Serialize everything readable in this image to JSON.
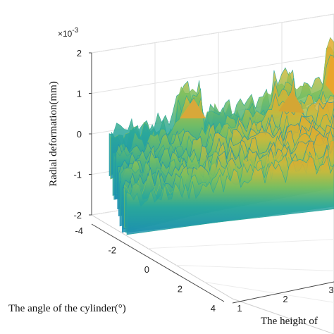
{
  "chart_data": {
    "type": "surface",
    "zlabel": "Radial deformation(mm)",
    "ylabel_angle": "The angle of the cylinder(°)",
    "xlabel_height": "The height of",
    "z_exponent_prefix": "×10",
    "z_exponent": "-3",
    "z_ticks": [
      "-2",
      "-1",
      "0",
      "1",
      "2"
    ],
    "angle_ticks": [
      "-4",
      "-2",
      "0",
      "2",
      "4"
    ],
    "height_ticks": [
      "1",
      "2",
      "3"
    ],
    "zlim": [
      -2,
      2
    ],
    "angle_range": [
      -4,
      4
    ],
    "height_range": [
      1,
      3
    ],
    "grid": true,
    "colormap": [
      "#1b8fb0",
      "#2aa89a",
      "#7bbf5e",
      "#c9b93c",
      "#e8a62a"
    ],
    "surface_samples": {
      "baseline_mean": -0.1,
      "range": [
        -1.8,
        1.9
      ],
      "peaks": [
        {
          "angle": -1.2,
          "height": 1.4,
          "value": 0.9
        },
        {
          "angle": -2.0,
          "height": 2.2,
          "value": 1.0
        },
        {
          "angle": -2.6,
          "height": 3.3,
          "value": 1.9
        }
      ]
    }
  }
}
